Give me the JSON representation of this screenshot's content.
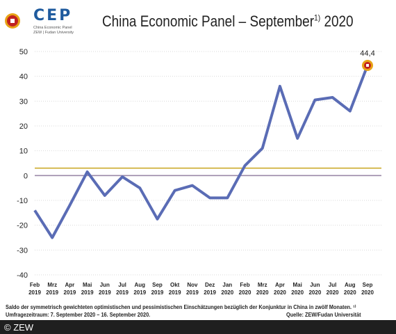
{
  "header": {
    "logo_text": "CEP",
    "logo_sub1": "China Economic Panel",
    "logo_sub2": "ZEW | Fudan University",
    "title_main": "China Economic Panel – September",
    "title_sup": "1)",
    "title_year": " 2020"
  },
  "colors": {
    "line": "#5a6cb5",
    "reference": "#c8a41e",
    "zero": "#9b8aa8",
    "grid": "#d9d9d9",
    "marker": "#c0211f",
    "marker_ring": "#e8a316"
  },
  "chart_data": {
    "type": "line",
    "categories": [
      [
        "Feb",
        "2019"
      ],
      [
        "Mrz",
        "2019"
      ],
      [
        "Apr",
        "2019"
      ],
      [
        "Mai",
        "2019"
      ],
      [
        "Jun",
        "2019"
      ],
      [
        "Jul",
        "2019"
      ],
      [
        "Aug",
        "2019"
      ],
      [
        "Sep",
        "2019"
      ],
      [
        "Okt",
        "2019"
      ],
      [
        "Nov",
        "2019"
      ],
      [
        "Dez",
        "2019"
      ],
      [
        "Jan",
        "2020"
      ],
      [
        "Feb",
        "2020"
      ],
      [
        "Mrz",
        "2020"
      ],
      [
        "Apr",
        "2020"
      ],
      [
        "Mai",
        "2020"
      ],
      [
        "Jun",
        "2020"
      ],
      [
        "Jul",
        "2020"
      ],
      [
        "Aug",
        "2020"
      ],
      [
        "Sep",
        "2020"
      ]
    ],
    "values": [
      -14,
      -25,
      -12,
      1.5,
      -8,
      -0.5,
      -5,
      -17.5,
      -6,
      -4,
      -9,
      -9,
      4,
      11,
      36,
      15,
      30.5,
      31.5,
      26,
      44.4
    ],
    "reference_line": 3,
    "last_value_label": "44,4",
    "ylim": [
      -40,
      50
    ],
    "yticks": [
      -40,
      -30,
      -20,
      -10,
      0,
      10,
      20,
      30,
      40,
      50
    ],
    "grid": "horizontal"
  },
  "note": {
    "text": "Saldo der symmetrisch gewichteten optimistischen und pessimistischen Einschätzungen bezüglich der Konjunktur in China in zwölf Monaten. ¹⁾ Umfragezeitraum: 7. September 2020 – 16. September 2020.",
    "source": "Quelle: ZEW/Fudan Universität"
  },
  "footer": {
    "copyright": "© ZEW"
  }
}
